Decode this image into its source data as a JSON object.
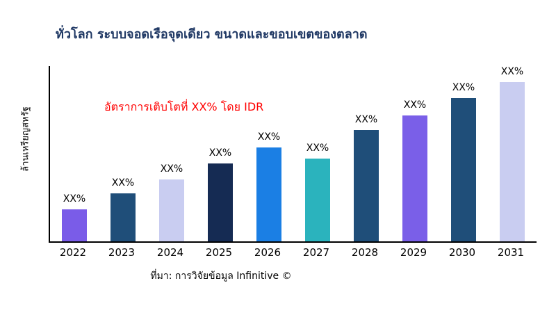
{
  "title": "ทั่วโลก ระบบจอดเรือจุดเดียว ขนาดและขอบเขตของตลาด",
  "ylabel": "ล้านเหรียญสหรัฐ",
  "annotation": "อัตราการเติบโตที่ XX% โดย IDR",
  "source": "ที่มา: การวิจัยข้อมูล Infinitive ©",
  "colors": {
    "title": "#1F3864",
    "annotation": "#FF0000",
    "axis": "#000000"
  },
  "chart_data": {
    "type": "bar",
    "title": "ทั่วโลก ระบบจอดเรือจุดเดียว ขนาดและขอบเขตของตลาด",
    "xlabel": "",
    "ylabel": "ล้านเหรียญสหรัฐ",
    "categories": [
      "2022",
      "2023",
      "2024",
      "2025",
      "2026",
      "2027",
      "2028",
      "2029",
      "2030",
      "2031"
    ],
    "values": [
      20,
      30,
      39,
      49,
      59,
      52,
      70,
      79,
      90,
      100
    ],
    "bar_labels": [
      "XX%",
      "XX%",
      "XX%",
      "XX%",
      "XX%",
      "XX%",
      "XX%",
      "XX%",
      "XX%",
      "XX%"
    ],
    "bar_colors": [
      "#7A5CE8",
      "#1F4E79",
      "#C9CDF1",
      "#152B53",
      "#1B7FE4",
      "#2BB3BD",
      "#1F4E79",
      "#7A5FE8",
      "#1F4E79",
      "#C9CDF1"
    ],
    "ylim": [
      0,
      110
    ],
    "grid": false,
    "legend": false,
    "annotation": "อัตราการเติบโตที่ XX% โดย IDR",
    "source": "ที่มา: การวิจัยข้อมูล Infinitive ©"
  }
}
